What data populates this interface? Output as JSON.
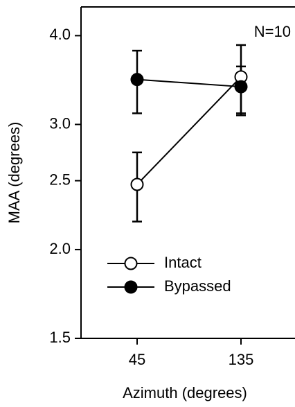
{
  "chart_data": {
    "type": "line",
    "x_label": "Azimuth (degrees)",
    "y_label": "MAA (degrees)",
    "categories": [
      "45",
      "135"
    ],
    "annotation": "N=10",
    "log_scale_y": true,
    "ylim": [
      1.5,
      4.39
    ],
    "yticks": [
      1.5,
      {
        "value": 2,
        "label": "2.0"
      },
      2.5,
      {
        "value": 3,
        "label": "3.0"
      },
      {
        "value": 4,
        "label": "4.0"
      }
    ],
    "legend": "lower left",
    "series": [
      {
        "name": "Intact",
        "color": "#000000",
        "filled": false,
        "values": [
          2.47,
          3.5
        ],
        "lower": [
          2.19,
          3.11
        ],
        "upper": [
          2.74,
          3.88
        ]
      },
      {
        "name": "Bypassed",
        "color": "#000000",
        "filled": true,
        "values": [
          3.47,
          3.39
        ],
        "lower": [
          3.11,
          3.09
        ],
        "upper": [
          3.81,
          3.62
        ]
      }
    ]
  }
}
